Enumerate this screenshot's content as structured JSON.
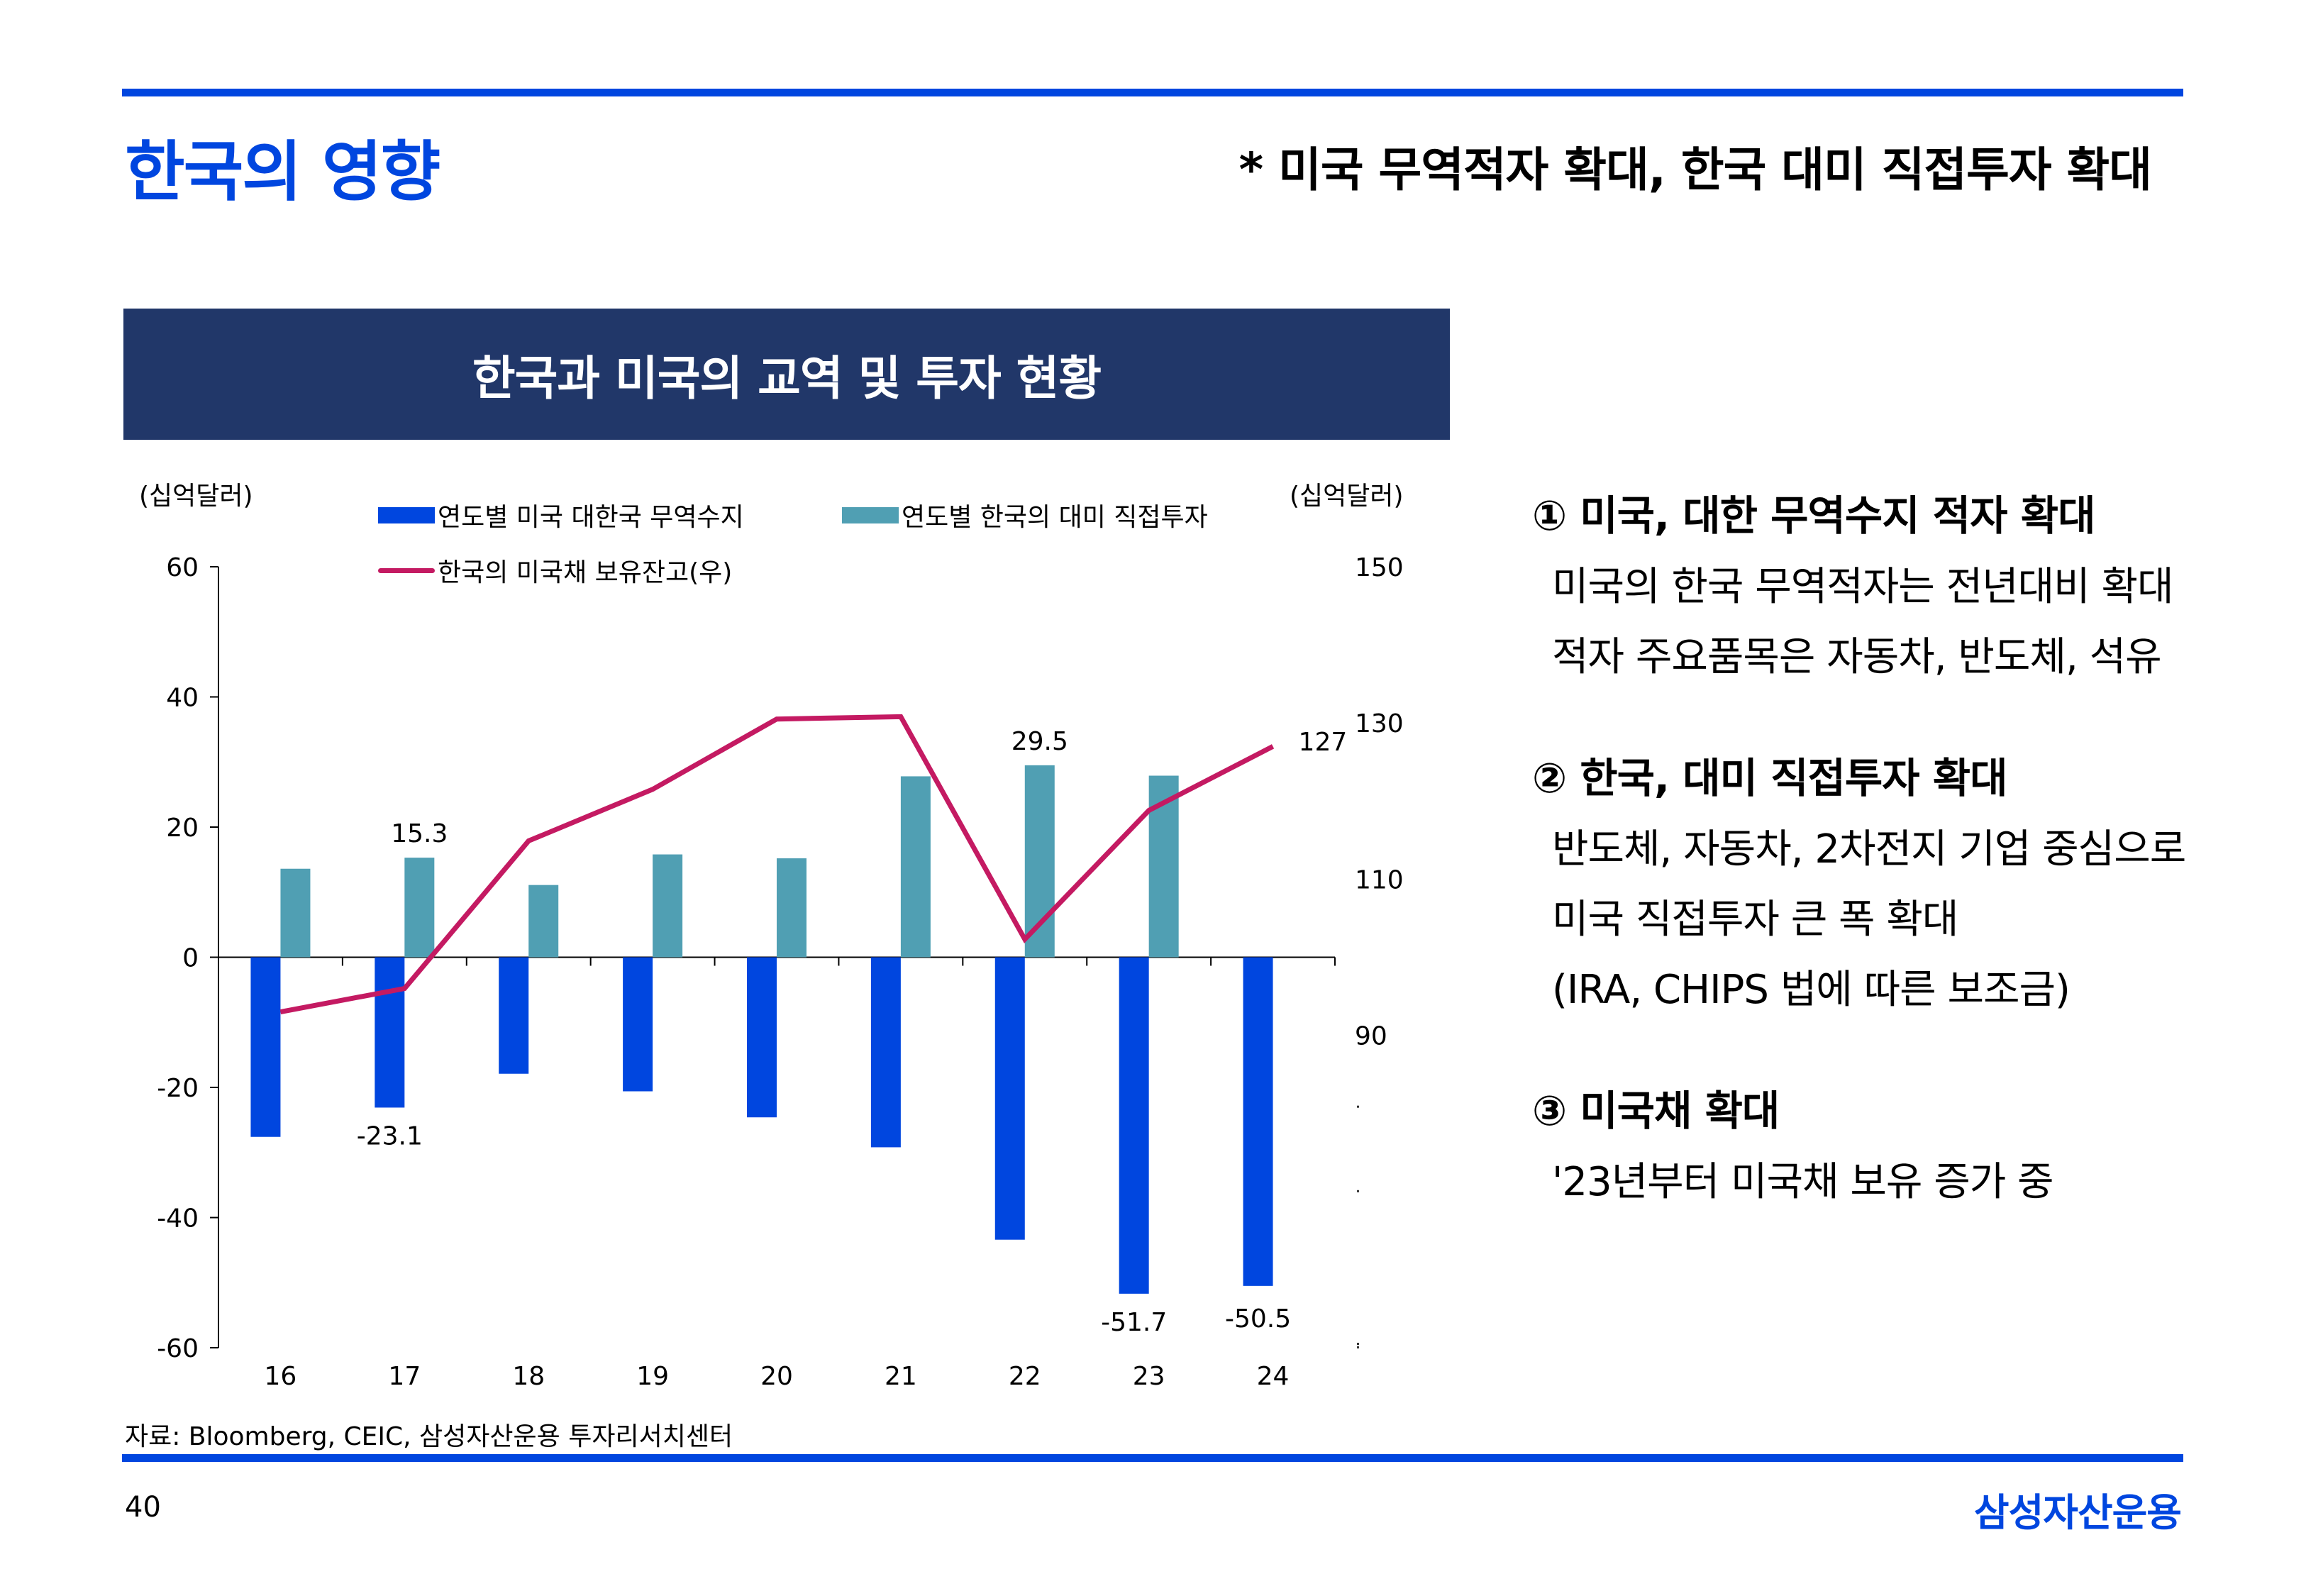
{
  "header": {
    "title": "한국의 영향",
    "headline": "* 미국 무역적자 확대, 한국 대미 직접투자 확대"
  },
  "chart_panel": {
    "banner_title": "한국과 미국의 교역 및 투자 현황",
    "left_unit": "(십억달러)",
    "right_unit": "(십억달러)"
  },
  "colors": {
    "brand_blue": "#0046DF",
    "banner_navy": "#213769",
    "trade_balance": "#0046DF",
    "fdi": "#509FB3",
    "treasury": "#C41A62"
  },
  "chart_data": {
    "type": "bar",
    "title": "한국과 미국의 교역 및 투자 현황",
    "categories": [
      "16",
      "17",
      "18",
      "19",
      "20",
      "21",
      "22",
      "23",
      "24"
    ],
    "xlabel": "",
    "ylabel": "(십억달러)",
    "ylabel_right": "(십억달러)",
    "ylim": [
      -60,
      60
    ],
    "yticks": [
      "60",
      "40",
      "20",
      "0",
      "-20",
      "-40",
      "-60"
    ],
    "ylim_right": [
      50,
      150
    ],
    "yticks_right": [
      "150",
      "130",
      "110",
      "90"
    ],
    "legend_position": "top",
    "grid": false,
    "series": [
      {
        "name": "연도별 미국 대한국 무역수지",
        "type": "bar",
        "axis": "left",
        "values": [
          -27.6,
          -23.1,
          -17.9,
          -20.6,
          -24.6,
          -29.2,
          -43.4,
          -51.7,
          -50.5
        ]
      },
      {
        "name": "연도별 한국의 대미 직접투자",
        "type": "bar",
        "axis": "left",
        "values": [
          13.6,
          15.3,
          11.1,
          15.8,
          15.2,
          27.8,
          29.5,
          27.9,
          null
        ]
      },
      {
        "name": "한국의 미국채 보유잔고(우)",
        "type": "line",
        "axis": "right",
        "values": [
          93.0,
          96.0,
          114.9,
          121.5,
          130.5,
          130.8,
          102.3,
          118.8,
          127
        ]
      }
    ],
    "annotations": [
      {
        "series": 1,
        "index": 1,
        "text": "15.3"
      },
      {
        "series": 1,
        "index": 6,
        "text": "29.5"
      },
      {
        "series": 0,
        "index": 1,
        "text": "-23.1"
      },
      {
        "series": 0,
        "index": 7,
        "text": "-51.7"
      },
      {
        "series": 0,
        "index": 8,
        "text": "-50.5"
      },
      {
        "series": 2,
        "index": 8,
        "text": "127"
      }
    ]
  },
  "points": [
    {
      "heading": "① 미국, 대한 무역수지 적자 확대",
      "lines": [
        "미국의 한국 무역적자는 전년대비 확대",
        "적자 주요품목은 자동차, 반도체, 석유"
      ]
    },
    {
      "heading": "② 한국, 대미 직접투자 확대",
      "lines": [
        "반도체, 자동차, 2차전지 기업 중심으로",
        "미국 직접투자 큰 폭 확대",
        "(IRA, CHIPS 법에 따른 보조금)"
      ]
    },
    {
      "heading": "③ 미국채 확대",
      "lines": [
        "'23년부터 미국채 보유 증가 중"
      ]
    }
  ],
  "footer": {
    "source": "자료: Bloomberg, CEIC, 삼성자산운용 투자리서치센터",
    "page_number": "40",
    "brand": "삼성자산운용"
  }
}
